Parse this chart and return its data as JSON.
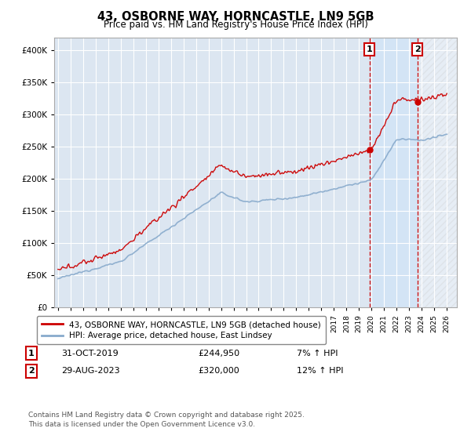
{
  "title": "43, OSBORNE WAY, HORNCASTLE, LN9 5GB",
  "subtitle": "Price paid vs. HM Land Registry's House Price Index (HPI)",
  "ylim": [
    0,
    420000
  ],
  "xlim_start": 1994.7,
  "xlim_end": 2026.8,
  "background_color": "#ffffff",
  "plot_bg_color": "#dce6f1",
  "plot_bg_color_highlight": "#d0e4f7",
  "grid_color": "#ffffff",
  "line_color_red": "#cc0000",
  "line_color_blue": "#88aacc",
  "marker1_date": 2019.83,
  "marker1_value": 244950,
  "marker2_date": 2023.66,
  "marker2_value": 320000,
  "marker1_label": "1",
  "marker2_label": "2",
  "legend_red": "43, OSBORNE WAY, HORNCASTLE, LN9 5GB (detached house)",
  "legend_blue": "HPI: Average price, detached house, East Lindsey",
  "footer": "Contains HM Land Registry data © Crown copyright and database right 2025.\nThis data is licensed under the Open Government Licence v3.0."
}
